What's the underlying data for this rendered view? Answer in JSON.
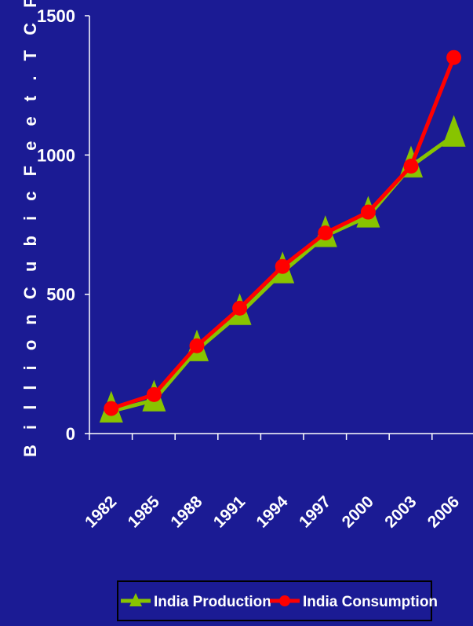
{
  "chart_data": {
    "type": "line",
    "title": "",
    "xlabel": "",
    "ylabel": "B i l l i o n   C u b i c   F e e t .  T C F",
    "ylim": [
      0,
      1500
    ],
    "yticks": [
      "0",
      "500",
      "1000",
      "1500"
    ],
    "categories": [
      "1982",
      "1985",
      "1988",
      "1991",
      "1994",
      "1997",
      "2000",
      "2003",
      "2006"
    ],
    "grid": false,
    "legend_position": "bottom",
    "series": [
      {
        "name": "India Production",
        "values": [
          80,
          120,
          300,
          430,
          580,
          710,
          780,
          960,
          1070
        ],
        "color": "#88c400",
        "marker": "triangle"
      },
      {
        "name": "India Consumption",
        "values": [
          90,
          140,
          315,
          450,
          600,
          720,
          795,
          960,
          1350
        ],
        "color": "#ff0000",
        "marker": "circle"
      }
    ],
    "colors": {
      "background": "#1b1b94",
      "axis": "#ffffff",
      "text": "#ffffff"
    }
  }
}
